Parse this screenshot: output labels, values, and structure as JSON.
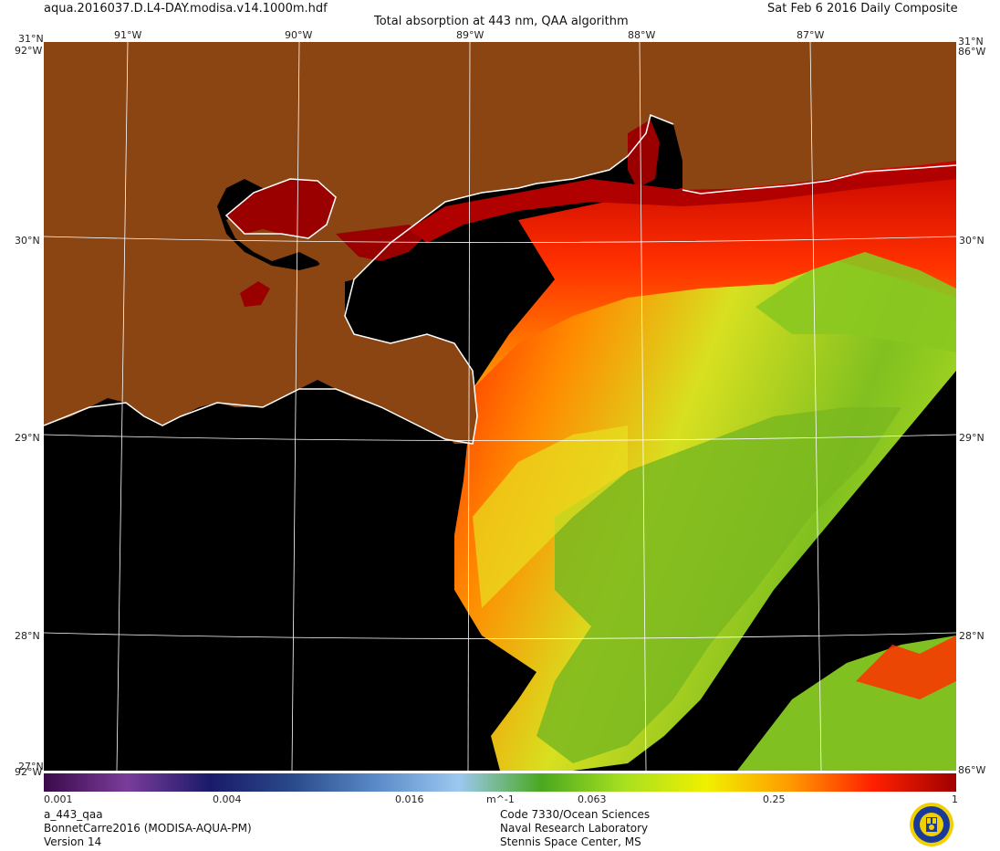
{
  "header": {
    "filename": "aqua.2016037.D.L4-DAY.modisa.v14.1000m.hdf",
    "title": "Total absorption at 443 nm, QAA algorithm",
    "date": "Sat Feb  6 2016 Daily Composite"
  },
  "map": {
    "lon_labels": [
      "91°W",
      "90°W",
      "89°W",
      "88°W",
      "87°W"
    ],
    "lat_labels": [
      "30°N",
      "29°N",
      "28°N"
    ],
    "corner_labels": {
      "top_lat": "31°N",
      "top_lon": "92°W",
      "bottom_lat": "27°N",
      "bottom_lon": "92°W",
      "right_top_lat": "31°N",
      "right_top_lon": "86°W",
      "right_bottom_lon": "86°W"
    },
    "land_color": "#8B4513",
    "ocean_color": "#000000"
  },
  "colorbar": {
    "tick_labels": [
      "0.001",
      "0.004",
      "0.016",
      "m^-1",
      "0.063",
      "0.25",
      "1"
    ],
    "colors": [
      "#3a0a4a",
      "#7a3c9a",
      "#1a1a6a",
      "#2a4a8a",
      "#5a8ac8",
      "#9cc8f0",
      "#4aa820",
      "#a8e020",
      "#f0f000",
      "#ff9a00",
      "#ff2000",
      "#a00000"
    ]
  },
  "footer": {
    "left": [
      "a_443_qaa",
      "BonnetCarre2016 (MODISA-AQUA-PM)",
      "Version 14"
    ],
    "center": [
      "Code 7330/Ocean Sciences",
      "Naval Research Laboratory",
      "Stennis Space Center, MS"
    ]
  },
  "logo": {
    "name": "nrl-seal-icon",
    "colors": [
      "#1a3a9a",
      "#f0d000"
    ]
  }
}
